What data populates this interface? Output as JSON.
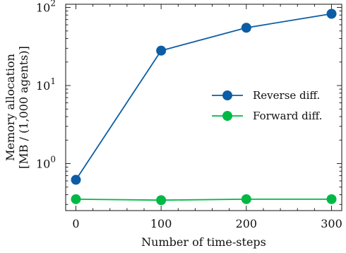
{
  "chart_data": {
    "type": "line",
    "xlabel": "Number of time-steps",
    "ylabel": [
      "Memory allocation",
      "[MB / (1,000 agents)]"
    ],
    "yscale": "log",
    "xlim": [
      -12,
      312
    ],
    "ylim": [
      0.25,
      110
    ],
    "x_ticks": [
      {
        "value": 0,
        "label": "0"
      },
      {
        "value": 100,
        "label": "100"
      },
      {
        "value": 200,
        "label": "200"
      },
      {
        "value": 300,
        "label": "300"
      }
    ],
    "y_ticks": [
      {
        "value": 1,
        "label": "10",
        "exp": "0"
      },
      {
        "value": 10,
        "label": "10",
        "exp": "1"
      },
      {
        "value": 100,
        "label": "10",
        "exp": "2"
      }
    ],
    "x": [
      0,
      100,
      200,
      300
    ],
    "series": [
      {
        "name": "Reverse diff.",
        "color": "#0c5da5",
        "values": [
          0.62,
          28,
          55,
          83
        ]
      },
      {
        "name": "Forward diff.",
        "color": "#00b945",
        "values": [
          0.35,
          0.34,
          0.35,
          0.35
        ]
      }
    ],
    "legend_position": "center-right",
    "grid": false
  }
}
